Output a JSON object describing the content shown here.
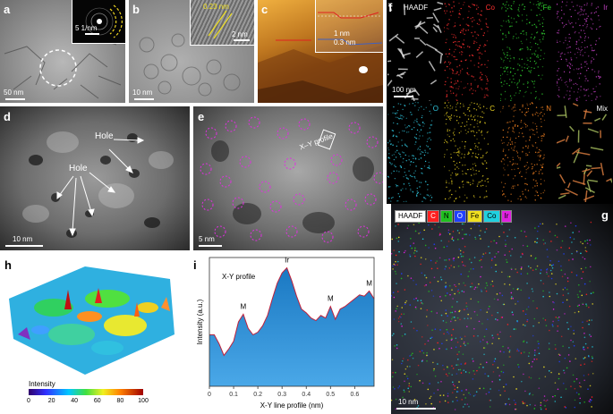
{
  "panels": {
    "a": {
      "label": "a",
      "scalebar": "50 nm",
      "inset_scalebar": "5 1/nm"
    },
    "b": {
      "label": "b",
      "scalebar": "10 nm",
      "inset_spacing": "0.23 nm",
      "inset_scalebar": "2 nm"
    },
    "c": {
      "label": "c",
      "height_1": "1 nm",
      "height_2": "0.3 nm"
    },
    "d": {
      "label": "d",
      "scalebar": "10 nm",
      "hole_label_1": "Hole",
      "hole_label_2": "Hole"
    },
    "e": {
      "label": "e",
      "scalebar": "5 nm",
      "profile_label": "X–Y profile"
    },
    "f": {
      "label": "f",
      "scalebar": "100 nm",
      "maps": [
        {
          "name": "HAADF",
          "color": "#ffffff"
        },
        {
          "name": "Co",
          "color": "#ff3030"
        },
        {
          "name": "Fe",
          "color": "#30d030"
        },
        {
          "name": "Ir",
          "color": "#c040c0"
        },
        {
          "name": "O",
          "color": "#30c8e0"
        },
        {
          "name": "C",
          "color": "#e8d020"
        },
        {
          "name": "N",
          "color": "#f08020"
        },
        {
          "name": "Mix",
          "color": "#ffffff"
        }
      ]
    },
    "g": {
      "label": "g",
      "scalebar": "10 nm",
      "legend": [
        {
          "name": "HAADF",
          "bg": "#ffffff",
          "fg": "#000000"
        },
        {
          "name": "C",
          "bg": "#ff2020",
          "fg": "#ffffff"
        },
        {
          "name": "N",
          "bg": "#20c020",
          "fg": "#000000"
        },
        {
          "name": "O",
          "bg": "#2040ff",
          "fg": "#ffffff"
        },
        {
          "name": "Fe",
          "bg": "#f0e020",
          "fg": "#000000"
        },
        {
          "name": "Co",
          "bg": "#20d0e0",
          "fg": "#000000"
        },
        {
          "name": "Ir",
          "bg": "#e020e0",
          "fg": "#000000"
        }
      ]
    },
    "h": {
      "label": "h",
      "colorbar_title": "Intensity",
      "colorbar_ticks": [
        "0",
        "20",
        "40",
        "60",
        "80",
        "100"
      ]
    },
    "i": {
      "label": "i"
    }
  },
  "chart_data": {
    "type": "area",
    "title": "X-Y profile",
    "xlabel": "X-Y line profile (nm)",
    "ylabel": "Intensity (a.u.)",
    "xlim": [
      0,
      0.68
    ],
    "ylim": [
      0,
      1
    ],
    "x_ticks": [
      "0",
      "0.1",
      "0.2",
      "0.3",
      "0.4",
      "0.5",
      "0.6"
    ],
    "x": [
      0,
      0.02,
      0.04,
      0.06,
      0.08,
      0.1,
      0.12,
      0.14,
      0.16,
      0.18,
      0.2,
      0.22,
      0.24,
      0.26,
      0.28,
      0.3,
      0.32,
      0.34,
      0.36,
      0.38,
      0.4,
      0.42,
      0.44,
      0.46,
      0.48,
      0.5,
      0.52,
      0.54,
      0.56,
      0.58,
      0.6,
      0.62,
      0.64,
      0.66,
      0.68
    ],
    "y": [
      0.4,
      0.4,
      0.33,
      0.24,
      0.29,
      0.35,
      0.5,
      0.56,
      0.45,
      0.4,
      0.42,
      0.47,
      0.55,
      0.68,
      0.8,
      0.88,
      0.92,
      0.82,
      0.7,
      0.6,
      0.57,
      0.53,
      0.51,
      0.55,
      0.53,
      0.62,
      0.52,
      0.6,
      0.62,
      0.65,
      0.68,
      0.71,
      0.7,
      0.74,
      0.68
    ],
    "annotations": [
      {
        "text": "M",
        "x": 0.14,
        "y": 0.56
      },
      {
        "text": "Ir",
        "x": 0.32,
        "y": 0.92
      },
      {
        "text": "M",
        "x": 0.5,
        "y": 0.62
      },
      {
        "text": "M",
        "x": 0.66,
        "y": 0.74
      }
    ]
  }
}
